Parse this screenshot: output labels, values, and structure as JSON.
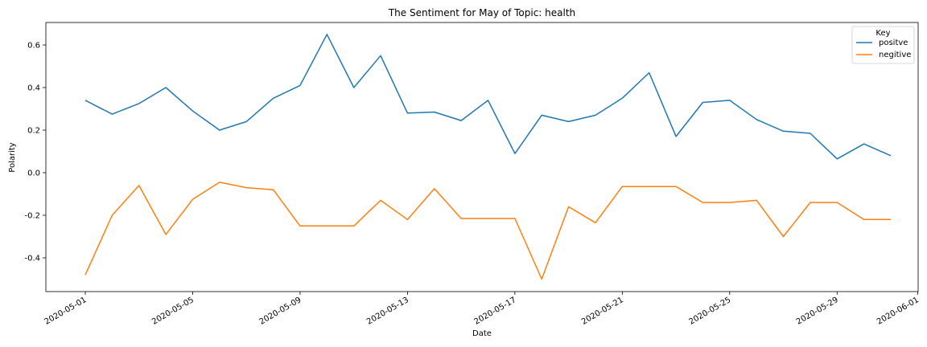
{
  "chart_data": {
    "type": "line",
    "title": "The Sentiment for May of Topic: health",
    "xlabel": "Date",
    "ylabel": "Polarity",
    "x": [
      "2020-05-01",
      "2020-05-02",
      "2020-05-03",
      "2020-05-04",
      "2020-05-05",
      "2020-05-06",
      "2020-05-07",
      "2020-05-08",
      "2020-05-09",
      "2020-05-10",
      "2020-05-11",
      "2020-05-12",
      "2020-05-13",
      "2020-05-14",
      "2020-05-15",
      "2020-05-16",
      "2020-05-17",
      "2020-05-18",
      "2020-05-19",
      "2020-05-20",
      "2020-05-21",
      "2020-05-22",
      "2020-05-23",
      "2020-05-24",
      "2020-05-25",
      "2020-05-26",
      "2020-05-27",
      "2020-05-28",
      "2020-05-29",
      "2020-05-30",
      "2020-05-31"
    ],
    "series": [
      {
        "name": "positve",
        "color": "#1f77b4",
        "values": [
          0.34,
          0.275,
          0.325,
          0.4,
          0.29,
          0.2,
          0.24,
          0.35,
          0.41,
          0.65,
          0.4,
          0.55,
          0.28,
          0.285,
          0.245,
          0.34,
          0.09,
          0.27,
          0.24,
          0.27,
          0.35,
          0.47,
          0.17,
          0.33,
          0.34,
          0.25,
          0.195,
          0.185,
          0.065,
          0.135,
          0.08
        ]
      },
      {
        "name": "negitive",
        "color": "#ff7f0e",
        "values": [
          -0.48,
          -0.2,
          -0.06,
          -0.29,
          -0.125,
          -0.045,
          -0.07,
          -0.08,
          -0.25,
          -0.25,
          -0.25,
          -0.13,
          -0.22,
          -0.075,
          -0.215,
          -0.215,
          -0.215,
          -0.5,
          -0.16,
          -0.235,
          -0.065,
          -0.065,
          -0.065,
          -0.14,
          -0.14,
          -0.13,
          -0.3,
          -0.14,
          -0.14,
          -0.22,
          -0.22
        ]
      }
    ],
    "x_ticks": [
      "2020-05-01",
      "2020-05-05",
      "2020-05-09",
      "2020-05-13",
      "2020-05-17",
      "2020-05-21",
      "2020-05-25",
      "2020-05-29",
      "2020-06-01"
    ],
    "y_ticks": [
      "0.6",
      "0.4",
      "0.2",
      "0.0",
      "-0.2",
      "-0.4"
    ],
    "y_tick_values": [
      0.6,
      0.4,
      0.2,
      0.0,
      -0.2,
      -0.4
    ],
    "xlim": [
      "2020-04-30",
      "2020-06-01"
    ],
    "ylim": [
      -0.5,
      0.7
    ],
    "legend": {
      "title": "Key",
      "placement": "top-right"
    },
    "grid": false
  }
}
